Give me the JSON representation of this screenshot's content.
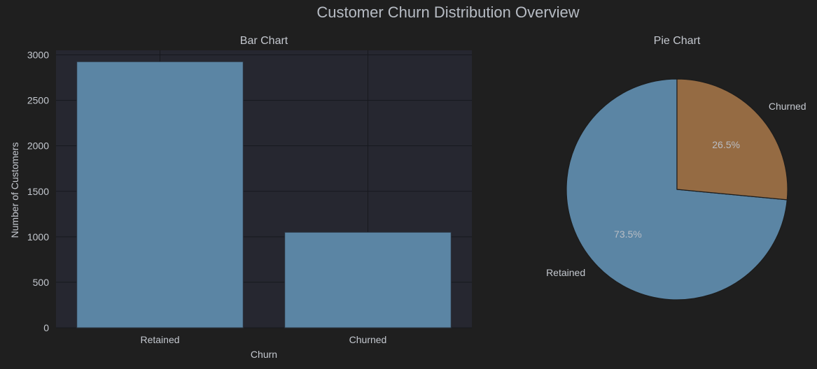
{
  "figure": {
    "title": "Customer Churn Distribution Overview",
    "background": "#1f1f1f"
  },
  "chart_data": [
    {
      "type": "bar",
      "title": "Bar Chart",
      "categories": [
        "Retained",
        "Churned"
      ],
      "values": [
        2925,
        1050
      ],
      "xlabel": "Churn",
      "ylabel": "Number of Customers",
      "ylim": [
        0,
        3050
      ],
      "yticks": [
        0,
        500,
        1000,
        1500,
        2000,
        2500,
        3000
      ],
      "grid": true,
      "bar_color": "#5b85a4",
      "axes_background": "#262730"
    },
    {
      "type": "pie",
      "title": "Pie Chart",
      "labels": [
        "Retained",
        "Churned"
      ],
      "values": [
        73.5,
        26.5
      ],
      "value_labels": [
        "73.5%",
        "26.5%"
      ],
      "colors": [
        "#5b85a4",
        "#956b43"
      ],
      "start": "top",
      "direction": "clockwise-for-churned"
    }
  ]
}
